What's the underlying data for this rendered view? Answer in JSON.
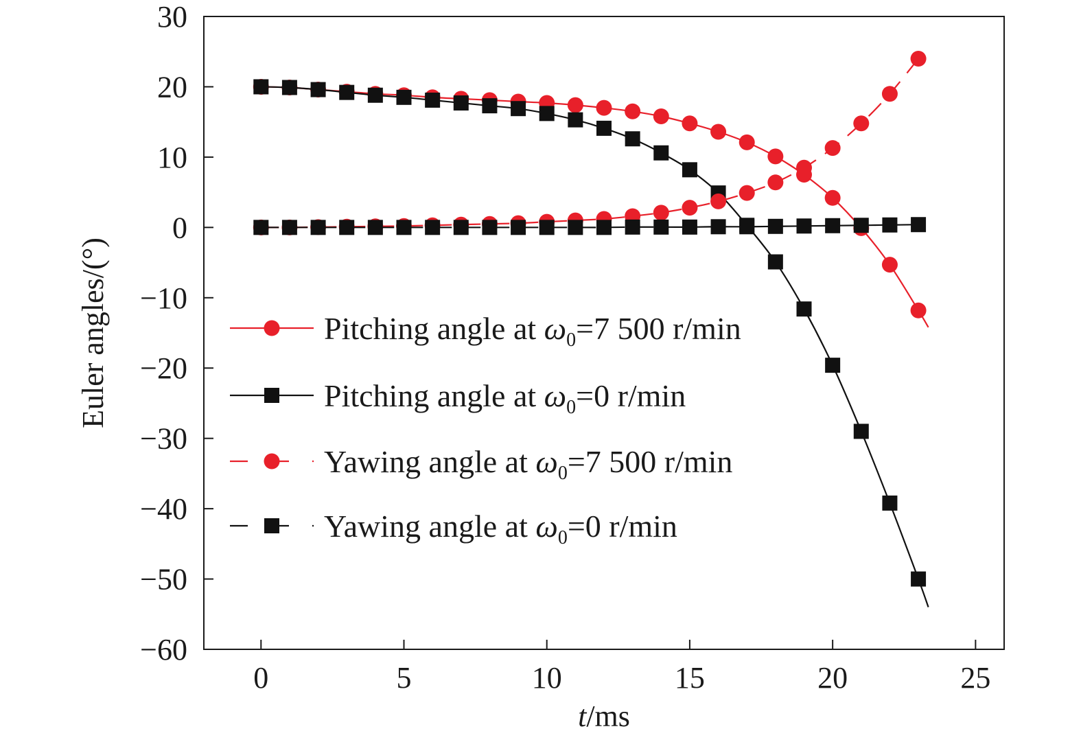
{
  "chart_data": {
    "type": "line",
    "xlabel": {
      "var": "t",
      "unit": "/ms"
    },
    "ylabel": "Euler angles/(°)",
    "xlim": [
      -2,
      26
    ],
    "ylim": [
      -60,
      30
    ],
    "xticks": [
      0,
      5,
      10,
      15,
      20,
      25
    ],
    "yticks": [
      30,
      20,
      10,
      0,
      -10,
      -20,
      -30,
      -40,
      -50,
      -60
    ],
    "ytick_labels": [
      "30",
      "20",
      "10",
      "0",
      "−10",
      "−20",
      "−30",
      "−40",
      "−50",
      "−60"
    ],
    "grid": false,
    "legend_position": "center-left",
    "x": [
      0,
      1,
      2,
      3,
      4,
      5,
      6,
      7,
      8,
      9,
      10,
      11,
      12,
      13,
      14,
      15,
      16,
      17,
      18,
      19,
      20,
      21,
      22,
      23
    ],
    "series": [
      {
        "name": "Pitching angle at ω0=7 500 r/min",
        "legend": {
          "prefix": "Pitching angle at ",
          "omega": "ω",
          "sub": "0",
          "suffix": "=7 500 r/min"
        },
        "color": "#e8202a",
        "dashed": false,
        "marker": "circle",
        "values": [
          20,
          19.9,
          19.6,
          19.3,
          19.0,
          18.8,
          18.5,
          18.3,
          18.1,
          17.9,
          17.7,
          17.4,
          17.0,
          16.5,
          15.8,
          14.8,
          13.6,
          12.1,
          10.1,
          7.5,
          4.2,
          -0.1,
          -5.3,
          -11.8
        ],
        "tail": [
          23.35,
          -14.2
        ]
      },
      {
        "name": "Pitching angle at ω0=0 r/min",
        "legend": {
          "prefix": "Pitching angle at ",
          "omega": "ω",
          "sub": "0",
          "suffix": "=0 r/min"
        },
        "color": "#111111",
        "dashed": false,
        "marker": "square",
        "values": [
          20,
          19.9,
          19.6,
          19.2,
          18.8,
          18.5,
          18.1,
          17.7,
          17.3,
          16.9,
          16.2,
          15.3,
          14.1,
          12.6,
          10.6,
          8.2,
          4.9,
          0.3,
          -4.9,
          -11.6,
          -19.6,
          -29.0,
          -39.2,
          -50.0
        ],
        "tail": [
          23.35,
          -54
        ]
      },
      {
        "name": "Yawing angle at ω0=7 500 r/min",
        "legend": {
          "prefix": "Yawing angle at ",
          "omega": "ω",
          "sub": "0",
          "suffix": "=7 500 r/min"
        },
        "color": "#e8202a",
        "dashed": true,
        "marker": "circle",
        "values": [
          0,
          0,
          0.05,
          0.1,
          0.15,
          0.2,
          0.3,
          0.4,
          0.5,
          0.6,
          0.8,
          1.0,
          1.2,
          1.6,
          2.1,
          2.8,
          3.7,
          4.9,
          6.4,
          8.5,
          11.3,
          14.8,
          19.0,
          24.0
        ],
        "tail": null
      },
      {
        "name": "Yawing angle at ω0=0 r/min",
        "legend": {
          "prefix": "Yawing angle at ",
          "omega": "ω",
          "sub": "0",
          "suffix": "=0 r/min"
        },
        "color": "#111111",
        "dashed": true,
        "marker": "square",
        "values": [
          0,
          0,
          0,
          0,
          0,
          0,
          0,
          0,
          0,
          0,
          0,
          0,
          0,
          0.05,
          0.05,
          0.05,
          0.1,
          0.1,
          0.15,
          0.2,
          0.25,
          0.3,
          0.35,
          0.4
        ],
        "tail": null
      }
    ]
  }
}
